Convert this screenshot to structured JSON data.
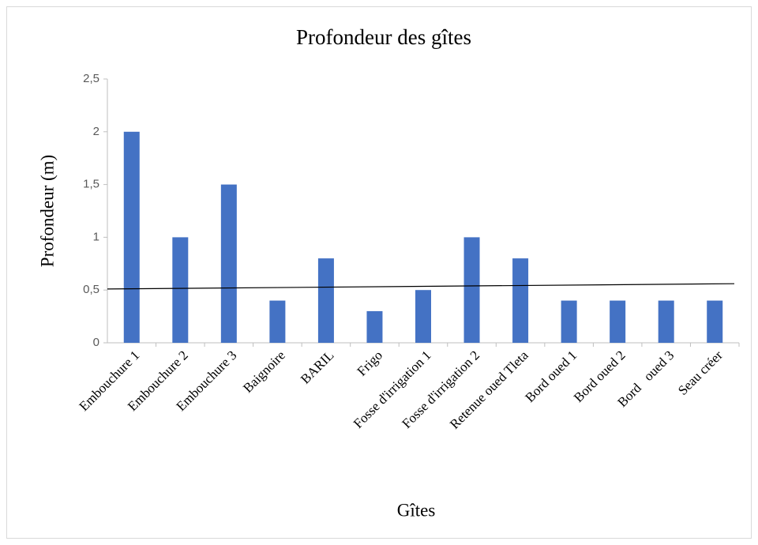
{
  "chart_data": {
    "type": "bar",
    "title": "Profondeur des gîtes",
    "x_label": "Gîtes",
    "y_label": "Profondeur (m)",
    "categories": [
      "Embouchure 1",
      "Embouchure 2",
      "Embouchure 3",
      "Baignoire",
      "BARIL",
      "Frigo",
      "Fosse d'irrigation 1",
      "Fosse d'irrigation 2",
      "Retenue oued Tleta",
      "Bord oued 1",
      "Bord oued 2",
      "Bord   oued 3",
      "Seau créer"
    ],
    "values": [
      2,
      1,
      1.5,
      0.4,
      0.8,
      0.3,
      0.5,
      1,
      0.8,
      0.4,
      0.4,
      0.4,
      0.4
    ],
    "color": "#4472c4",
    "trend_line": [
      0.51,
      0.56
    ],
    "ylim": [
      0,
      2.5
    ],
    "yticks": [
      0,
      {
        "value": 0.5,
        "label": "0,5"
      },
      1,
      {
        "value": 1.5,
        "label": "1,5"
      },
      2,
      {
        "value": 2.5,
        "label": "2,5"
      }
    ],
    "grid": false
  }
}
